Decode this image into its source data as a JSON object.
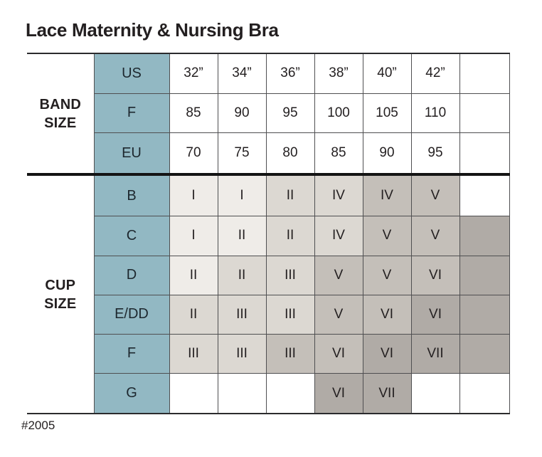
{
  "chart_data": {
    "type": "table",
    "title": "Lace Maternity & Nursing Bra",
    "footnote": "#2005",
    "band_group_label": "BAND SIZE",
    "cup_group_label": "CUP SIZE",
    "band_rows": [
      {
        "header": "US",
        "cells": [
          {
            "v": "32”",
            "s": "white"
          },
          {
            "v": "34”",
            "s": "white"
          },
          {
            "v": "36”",
            "s": "white"
          },
          {
            "v": "38”",
            "s": "white"
          },
          {
            "v": "40”",
            "s": "white"
          },
          {
            "v": "42”",
            "s": "white"
          },
          {
            "v": "",
            "s": "white"
          }
        ]
      },
      {
        "header": "F",
        "cells": [
          {
            "v": "85",
            "s": "white"
          },
          {
            "v": "90",
            "s": "white"
          },
          {
            "v": "95",
            "s": "white"
          },
          {
            "v": "100",
            "s": "white"
          },
          {
            "v": "105",
            "s": "white"
          },
          {
            "v": "110",
            "s": "white"
          },
          {
            "v": "",
            "s": "white"
          }
        ]
      },
      {
        "header": "EU",
        "cells": [
          {
            "v": "70",
            "s": "white"
          },
          {
            "v": "75",
            "s": "white"
          },
          {
            "v": "80",
            "s": "white"
          },
          {
            "v": "85",
            "s": "white"
          },
          {
            "v": "90",
            "s": "white"
          },
          {
            "v": "95",
            "s": "white"
          },
          {
            "v": "",
            "s": "white"
          }
        ]
      }
    ],
    "cup_rows": [
      {
        "header": "B",
        "cells": [
          {
            "v": "I",
            "s": "l1"
          },
          {
            "v": "I",
            "s": "l1"
          },
          {
            "v": "II",
            "s": "l2"
          },
          {
            "v": "IV",
            "s": "l2"
          },
          {
            "v": "IV",
            "s": "m"
          },
          {
            "v": "V",
            "s": "m"
          },
          {
            "v": "",
            "s": "white"
          }
        ]
      },
      {
        "header": "C",
        "cells": [
          {
            "v": "I",
            "s": "l1"
          },
          {
            "v": "II",
            "s": "l1"
          },
          {
            "v": "II",
            "s": "l2"
          },
          {
            "v": "IV",
            "s": "l2"
          },
          {
            "v": "V",
            "s": "m"
          },
          {
            "v": "V",
            "s": "m"
          },
          {
            "v": "",
            "s": "d"
          }
        ]
      },
      {
        "header": "D",
        "cells": [
          {
            "v": "II",
            "s": "l1"
          },
          {
            "v": "II",
            "s": "l2"
          },
          {
            "v": "III",
            "s": "l2"
          },
          {
            "v": "V",
            "s": "m"
          },
          {
            "v": "V",
            "s": "m"
          },
          {
            "v": "VI",
            "s": "m"
          },
          {
            "v": "",
            "s": "d"
          }
        ]
      },
      {
        "header": "E/DD",
        "cells": [
          {
            "v": "II",
            "s": "l2"
          },
          {
            "v": "III",
            "s": "l2"
          },
          {
            "v": "III",
            "s": "l2"
          },
          {
            "v": "V",
            "s": "m"
          },
          {
            "v": "VI",
            "s": "m"
          },
          {
            "v": "VI",
            "s": "d"
          },
          {
            "v": "",
            "s": "d"
          }
        ]
      },
      {
        "header": "F",
        "cells": [
          {
            "v": "III",
            "s": "l2"
          },
          {
            "v": "III",
            "s": "l2"
          },
          {
            "v": "III",
            "s": "m"
          },
          {
            "v": "VI",
            "s": "m"
          },
          {
            "v": "VI",
            "s": "d"
          },
          {
            "v": "VII",
            "s": "d"
          },
          {
            "v": "",
            "s": "d"
          }
        ]
      },
      {
        "header": "G",
        "cells": [
          {
            "v": "",
            "s": "white"
          },
          {
            "v": "",
            "s": "white"
          },
          {
            "v": "",
            "s": "white"
          },
          {
            "v": "VI",
            "s": "d"
          },
          {
            "v": "VII",
            "s": "d"
          },
          {
            "v": "",
            "s": "white"
          },
          {
            "v": "",
            "s": "white"
          }
        ]
      }
    ]
  },
  "colors": {
    "teal": "#92b8c3",
    "header_text": "#1d272e",
    "cell_text": "#231f20",
    "grid_line": "#4f4f51",
    "heavy_line": "#141414",
    "shades": {
      "white": "#ffffff",
      "l1": "#efece8",
      "l2": "#dcd8d2",
      "m": "#c4bfb9",
      "d": "#b0aba6"
    }
  }
}
